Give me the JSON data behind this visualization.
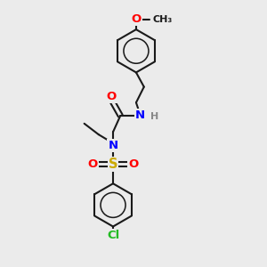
{
  "bg_color": "#ebebeb",
  "bond_color": "#1a1a1a",
  "bond_width": 1.5,
  "colors": {
    "O": "#ff0000",
    "N": "#0000ff",
    "S": "#ccaa00",
    "Cl": "#22bb22",
    "H": "#888888",
    "C": "#1a1a1a"
  },
  "font_size_atom": 9.5,
  "font_size_small": 8.0
}
